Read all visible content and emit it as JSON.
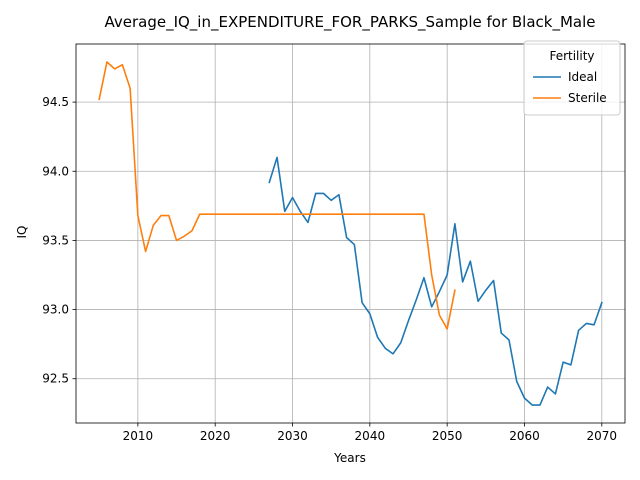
{
  "chart_data": {
    "type": "line",
    "title": "Average_IQ_in_EXPENDITURE_FOR_PARKS_Sample for Black_Male",
    "xlabel": "Years",
    "ylabel": "IQ",
    "xlim": [
      2002,
      2073
    ],
    "ylim": [
      92.18,
      94.92
    ],
    "x_ticks": [
      2010,
      2020,
      2030,
      2040,
      2050,
      2060,
      2070
    ],
    "y_ticks": [
      92.5,
      93.0,
      93.5,
      94.0,
      94.5
    ],
    "x_tick_labels": [
      "2010",
      "2020",
      "2030",
      "2040",
      "2050",
      "2060",
      "2070"
    ],
    "y_tick_labels": [
      "92.5",
      "93.0",
      "93.5",
      "94.0",
      "94.5"
    ],
    "grid": true,
    "legend": {
      "title": "Fertility",
      "placement": "top-right"
    },
    "series": [
      {
        "name": "Ideal",
        "color": "#1f77b4",
        "x": [
          2027,
          2028,
          2029,
          2030,
          2031,
          2032,
          2033,
          2034,
          2035,
          2036,
          2037,
          2038,
          2039,
          2040,
          2041,
          2042,
          2043,
          2044,
          2045,
          2046,
          2047,
          2048,
          2049,
          2050,
          2051,
          2052,
          2053,
          2054,
          2055,
          2056,
          2057,
          2058,
          2059,
          2060,
          2061,
          2062,
          2063,
          2064,
          2065,
          2066,
          2067,
          2068,
          2069,
          2070
        ],
        "y": [
          93.92,
          94.1,
          93.71,
          93.81,
          93.71,
          93.63,
          93.84,
          93.84,
          93.79,
          93.83,
          93.52,
          93.47,
          93.05,
          92.97,
          92.8,
          92.72,
          92.68,
          92.76,
          92.92,
          93.07,
          93.23,
          93.02,
          93.13,
          93.25,
          93.62,
          93.2,
          93.35,
          93.06,
          93.14,
          93.21,
          92.83,
          92.78,
          92.48,
          92.36,
          92.31,
          92.31,
          92.44,
          92.39,
          92.62,
          92.6,
          92.85,
          92.9,
          92.89,
          93.05
        ]
      },
      {
        "name": "Sterile",
        "color": "#ff7f0e",
        "x": [
          2005,
          2006,
          2007,
          2008,
          2009,
          2010,
          2011,
          2012,
          2013,
          2014,
          2015,
          2016,
          2017,
          2018,
          2019,
          2020,
          2025,
          2030,
          2035,
          2040,
          2045,
          2047,
          2048,
          2049,
          2050,
          2051
        ],
        "y": [
          94.52,
          94.79,
          94.74,
          94.77,
          94.6,
          93.68,
          93.42,
          93.61,
          93.68,
          93.68,
          93.5,
          93.53,
          93.57,
          93.69,
          93.69,
          93.69,
          93.69,
          93.69,
          93.69,
          93.69,
          93.69,
          93.69,
          93.25,
          92.96,
          92.86,
          93.14
        ]
      }
    ]
  }
}
